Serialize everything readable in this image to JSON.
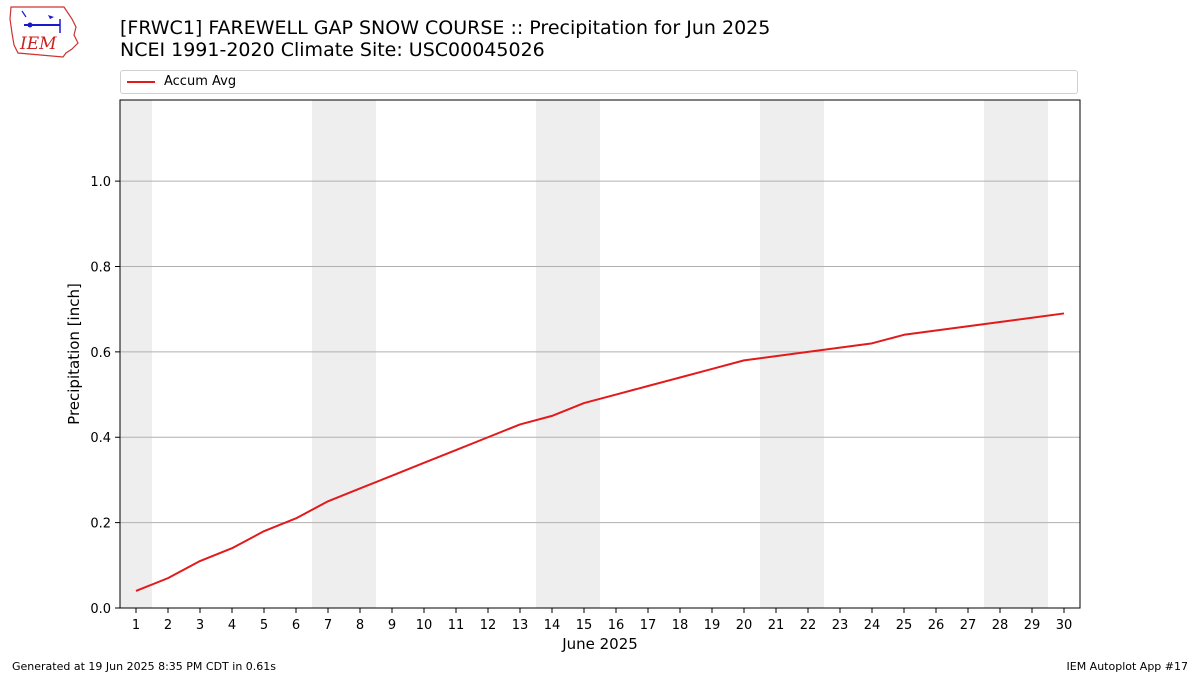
{
  "header": {
    "title_line1": "[FRWC1] FAREWELL GAP SNOW COURSE :: Precipitation for Jun 2025",
    "title_line2": "NCEI 1991-2020 Climate Site: USC00045026",
    "logo_text": "IEM"
  },
  "footer": {
    "generated": "Generated at 19 Jun 2025 8:35 PM CDT in 0.61s",
    "app": "IEM Autoplot App #17"
  },
  "chart_data": {
    "type": "line",
    "xlabel": "June 2025",
    "ylabel": "Precipitation [inch]",
    "x": [
      1,
      2,
      3,
      4,
      5,
      6,
      7,
      8,
      9,
      10,
      11,
      12,
      13,
      14,
      15,
      16,
      17,
      18,
      19,
      20,
      21,
      22,
      23,
      24,
      25,
      26,
      27,
      28,
      29,
      30
    ],
    "xlim": [
      0.5,
      30.5
    ],
    "ylim": [
      0,
      1.19
    ],
    "yticks": [
      0.0,
      0.2,
      0.4,
      0.6,
      0.8,
      1.0
    ],
    "ytick_labels": [
      "0.0",
      "0.2",
      "0.4",
      "0.6",
      "0.8",
      "1.0"
    ],
    "grid": "horizontal",
    "legend": "top",
    "weekend_bands": [
      [
        0.5,
        1.5
      ],
      [
        6.5,
        8.5
      ],
      [
        13.5,
        15.5
      ],
      [
        20.5,
        22.5
      ],
      [
        27.5,
        29.5
      ]
    ],
    "series": [
      {
        "name": "Accum Avg",
        "color": "#e31a1c",
        "values": [
          0.04,
          0.07,
          0.11,
          0.14,
          0.18,
          0.21,
          0.25,
          0.28,
          0.31,
          0.34,
          0.37,
          0.4,
          0.43,
          0.45,
          0.48,
          0.5,
          0.52,
          0.54,
          0.56,
          0.58,
          0.59,
          0.6,
          0.61,
          0.62,
          0.64,
          0.65,
          0.66,
          0.67,
          0.68,
          0.69
        ]
      }
    ]
  }
}
